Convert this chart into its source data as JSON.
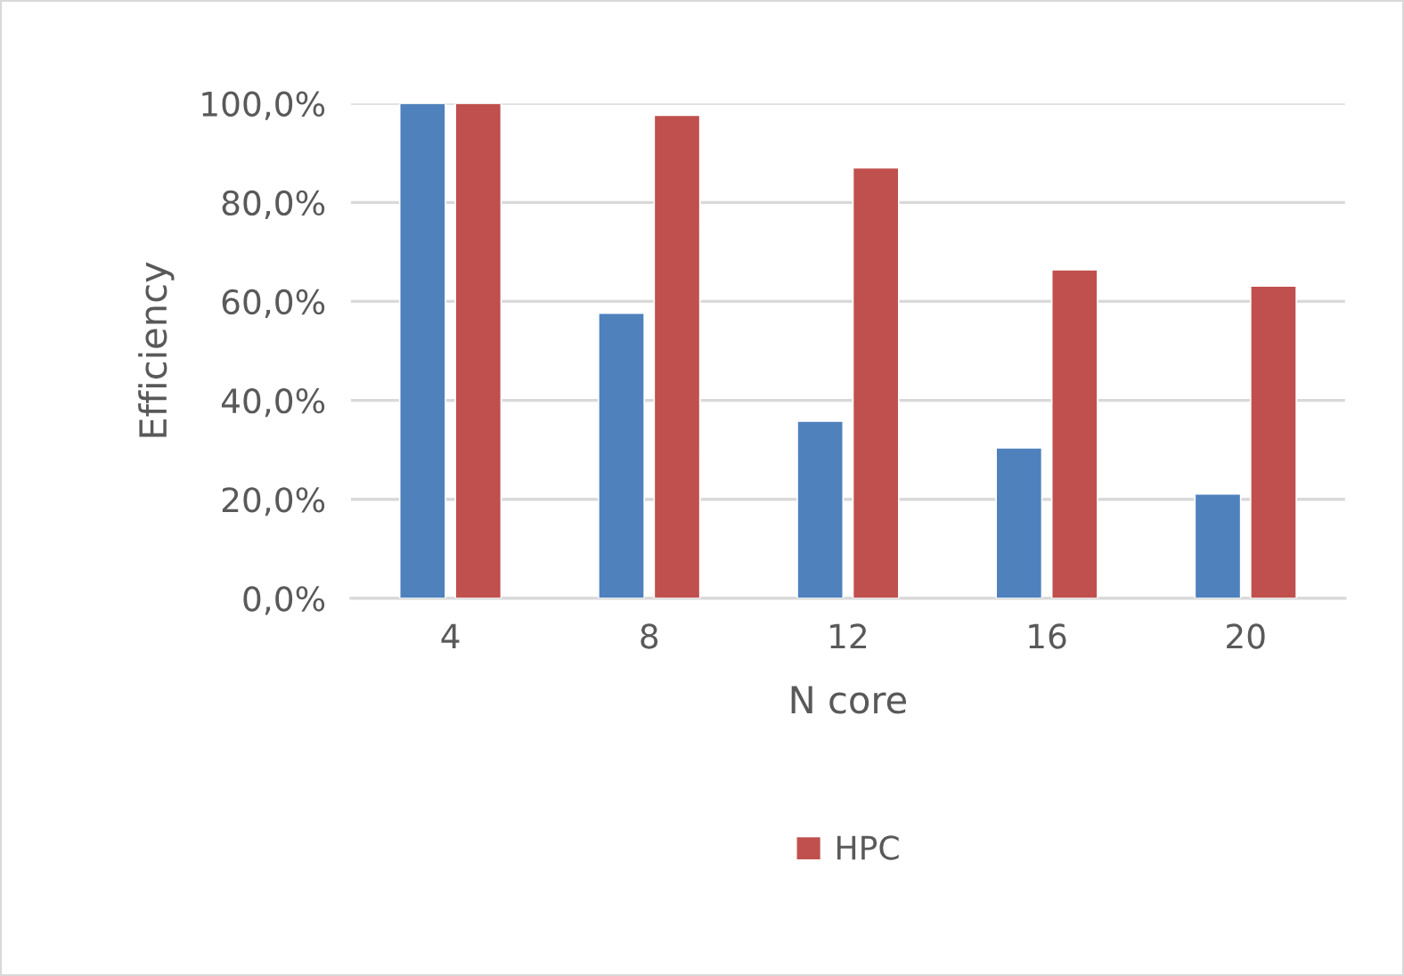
{
  "chart_data": {
    "type": "bar",
    "xlabel": "N core",
    "ylabel": "Efficiency",
    "categories": [
      "4",
      "8",
      "12",
      "16",
      "20"
    ],
    "series": [
      {
        "color": "#4f81bd",
        "values": [
          100,
          57.6,
          35.8,
          30.4,
          21.1
        ]
      },
      {
        "name": "HPC",
        "color": "#c0504d",
        "values": [
          100,
          97.6,
          87.0,
          66.4,
          63.1
        ]
      }
    ],
    "ylim": [
      0,
      100
    ],
    "yticks": [
      {
        "value": 0,
        "label": "0,0%"
      },
      {
        "value": 20,
        "label": "20,0%"
      },
      {
        "value": 40,
        "label": "40,0%"
      },
      {
        "value": 60,
        "label": "60,0%"
      },
      {
        "value": 80,
        "label": "80,0%"
      },
      {
        "value": 100,
        "label": "100,0%"
      }
    ],
    "grid": "y",
    "legend": "bottom"
  }
}
